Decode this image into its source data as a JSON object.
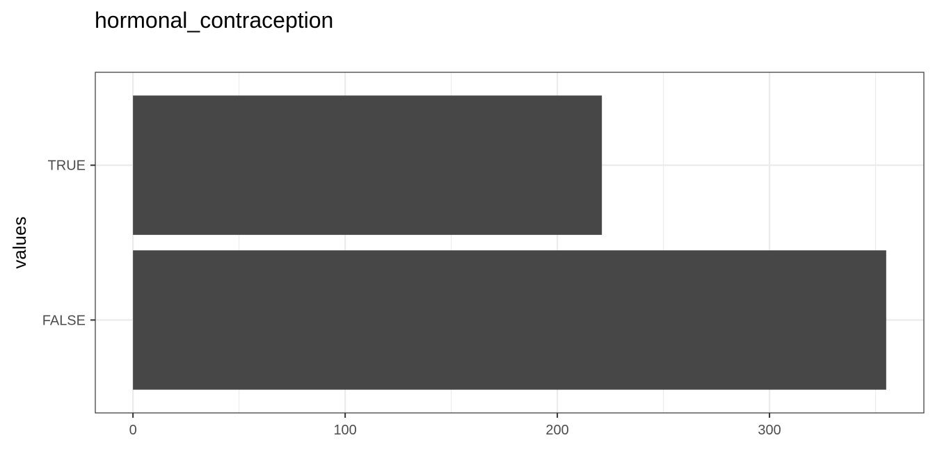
{
  "chart_data": {
    "type": "bar",
    "orientation": "horizontal",
    "title": "hormonal_contraception",
    "xlabel": "",
    "ylabel": "values",
    "categories": [
      "TRUE",
      "FALSE"
    ],
    "values": [
      221,
      355
    ],
    "xlim": [
      -17.75,
      372.75
    ],
    "x_ticks": [
      0,
      100,
      200,
      300
    ],
    "x_tick_labels": [
      "0",
      "100",
      "200",
      "300"
    ],
    "grid": true,
    "legend": "none",
    "colors": {
      "bar": "#474747",
      "grid": "#ebebeb",
      "panel_border": "#333333",
      "tick_label": "#4d4d4d"
    }
  }
}
